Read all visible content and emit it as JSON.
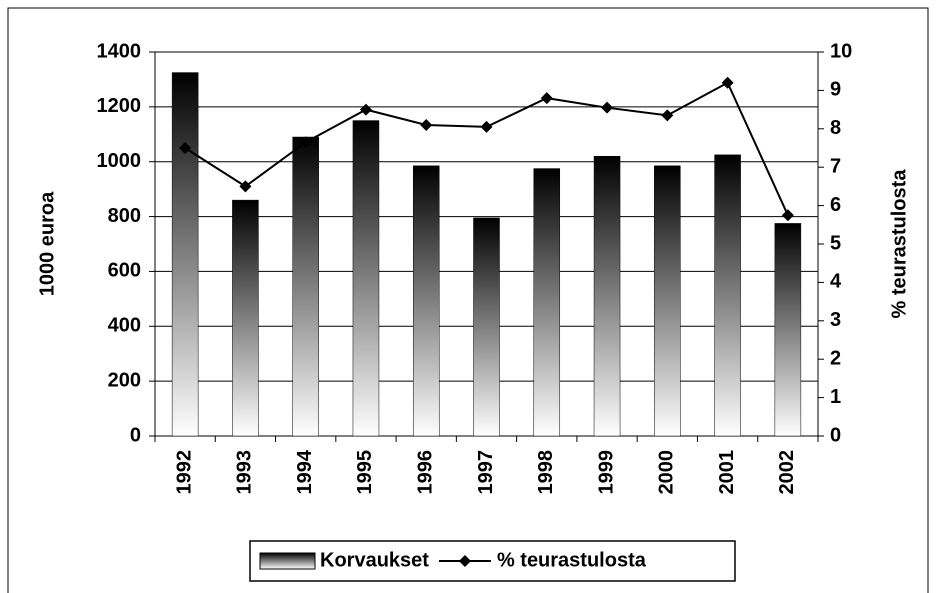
{
  "chart_data": {
    "type": "bar",
    "categories": [
      "1992",
      "1993",
      "1994",
      "1995",
      "1996",
      "1997",
      "1998",
      "1999",
      "2000",
      "2001",
      "2002"
    ],
    "series": [
      {
        "name": "Korvaukset",
        "type": "bar",
        "color": "#000000",
        "values": [
          1325,
          860,
          1090,
          1150,
          985,
          795,
          975,
          1020,
          985,
          1025,
          775
        ]
      },
      {
        "name": "% teurastulosta",
        "type": "line",
        "axis": "y2",
        "color": "#000000",
        "values": [
          7.5,
          6.5,
          7.65,
          8.5,
          8.1,
          8.05,
          8.8,
          8.55,
          8.35,
          9.2,
          5.75
        ]
      }
    ],
    "ylabel": "1000 euroa",
    "y2label": "% teurastulosta",
    "ylim": [
      0,
      1400
    ],
    "yticks": [
      0,
      200,
      400,
      600,
      800,
      1000,
      1200,
      1400
    ],
    "y2lim": [
      0,
      10
    ],
    "y2ticks": [
      0,
      1,
      2,
      3,
      4,
      5,
      6,
      7,
      8,
      9,
      10
    ],
    "grid": true,
    "legend": "bottom"
  }
}
